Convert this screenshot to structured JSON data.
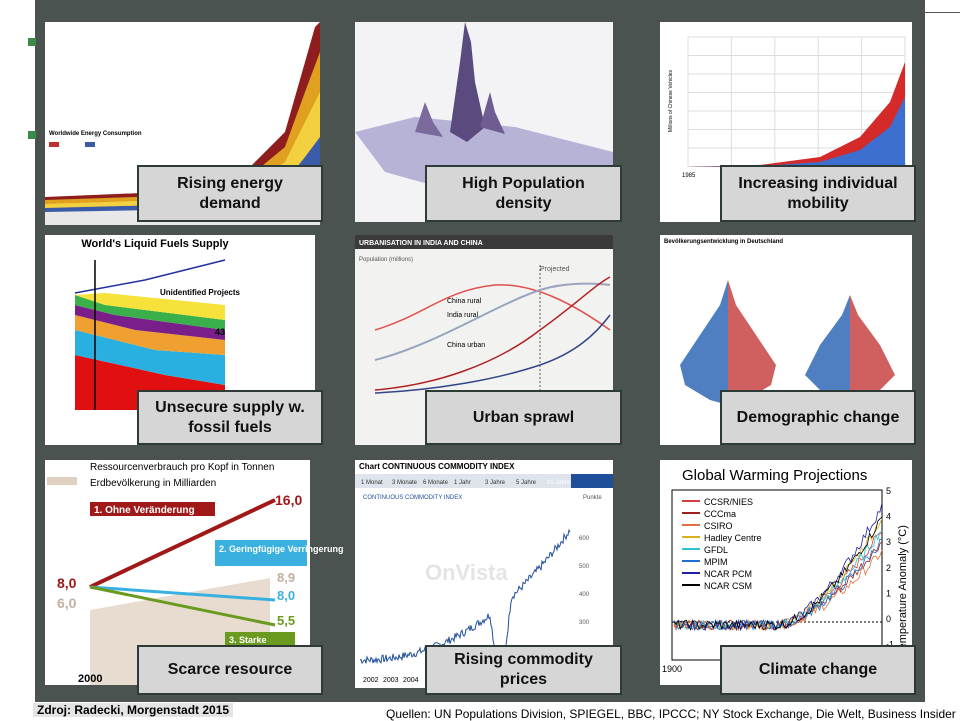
{
  "tiles": [
    {
      "label": "Rising energy demand",
      "title": "Worldwide Energy Consumption"
    },
    {
      "label": "High Population density"
    },
    {
      "label": "Increasing individual mobility",
      "axis_label": "Millions of Chinese Vehicles",
      "x_label": "1985"
    },
    {
      "label": "Unsecure supply w. fossil fuels",
      "title": "World's Liquid Fuels Supply",
      "annotation": "Unidentified Projects",
      "value": "43"
    },
    {
      "label": "Urban sprawl",
      "title": "URBANISATION IN INDIA AND CHINA",
      "axis_label": "Population (millions)",
      "annotations": [
        "Projected",
        "China rural",
        "India rural",
        "China urban"
      ]
    },
    {
      "label": "Demographic change",
      "title": "Bevölkerungsentwicklung in Deutschland"
    },
    {
      "label": "Scarce resource",
      "title": "Ressourcenverbrauch pro Kopf in Tonnen",
      "subtitle": "Erdbevölkerung in Milliarden",
      "scenarios": [
        "1. Ohne Veränderung",
        "2. Geringfügige Verringerung",
        "3. Starke"
      ],
      "numbers": [
        "16,0",
        "8,0",
        "6,0",
        "8,9",
        "8,0",
        "5,5"
      ],
      "x_label": "2000"
    },
    {
      "label": "Rising commodity prices",
      "title": "Chart CONTINUOUS COMMODITY INDEX",
      "tabs": [
        "1 Monat",
        "3 Monate",
        "6 Monate",
        "1 Jahr",
        "3 Jahre",
        "5 Jahre",
        "10 Jahre"
      ],
      "subtitle": "CONTINUOUS COMMODITY INDEX",
      "unit": "Punkte",
      "ticks": [
        "600",
        "500",
        "400",
        "300"
      ],
      "years": [
        "2002",
        "2003",
        "2004"
      ]
    },
    {
      "label": "Climate change",
      "title": "Global Warming Projections",
      "legend": [
        "CCSR/NIES",
        "CCCma",
        "CSIRO",
        "Hadley Centre",
        "GFDL",
        "MPIM",
        "NCAR PCM",
        "NCAR CSM"
      ],
      "axis_label": "Temperature Anomaly (°C)",
      "ticks": [
        "5",
        "4",
        "3",
        "2",
        "1",
        "0",
        "-1"
      ],
      "x_label": "1900"
    }
  ],
  "source_left": "Zdroj: Radecki, Morgenstadt 2015",
  "source_right": "Quellen: UN Populations Division, SPIEGEL, BBC, IPCCC; NY Stock Exchange, Die Welt, Business Insider"
}
